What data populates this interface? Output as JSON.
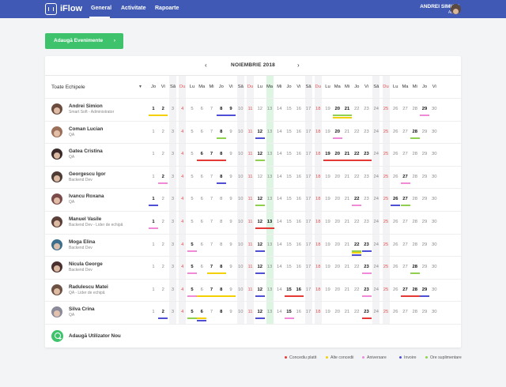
{
  "app": {
    "brand": "iFlow"
  },
  "nav": {
    "items": [
      "General",
      "Activitate",
      "Rapoarte"
    ],
    "active": 0
  },
  "user": {
    "name": "ANDREI SIMION",
    "role": "Admin"
  },
  "actions": {
    "add_events": "Adaugă Evenimente",
    "add_user": "Adaugă Utilizator Nou"
  },
  "calendar": {
    "month": "NOIEMBRIE 2018",
    "team_select": "Toate Echipele",
    "weekdays": [
      "Jo",
      "Vi",
      "Sâ",
      "Du",
      "Lu",
      "Ma",
      "Mi",
      "Jo",
      "Vi",
      "Sâ",
      "Du",
      "Lu",
      "Ma",
      "Mi",
      "Jo",
      "Vi",
      "Sâ",
      "Du",
      "Lu",
      "Ma",
      "Mi",
      "Jo",
      "Vi",
      "Sâ",
      "Du",
      "Lu",
      "Ma",
      "Mi",
      "Jo",
      "Vi"
    ],
    "today": 13
  },
  "colors": {
    "paid_leave": "#e53935",
    "other_leave": "#f5d000",
    "birthday": "#f08ad8",
    "absence": "#4f4fd6",
    "overtime": "#8fd14f"
  },
  "legend": [
    {
      "label": "Concediu platit",
      "color": "#e53935"
    },
    {
      "label": "Alte concedii",
      "color": "#f5d000"
    },
    {
      "label": "Aniversare",
      "color": "#f08ad8"
    },
    {
      "label": "Invoire",
      "color": "#4f4fd6"
    },
    {
      "label": "Ore suplimentare",
      "color": "#8fd14f"
    }
  ],
  "employees": [
    {
      "name": "Andrei Simion",
      "role": "Smart Soft - Administrator",
      "avatar_color": "#6a4b3e",
      "bold": [
        1,
        2,
        8,
        9,
        20,
        21,
        29
      ],
      "events": [
        {
          "from": 1,
          "to": 2,
          "type": "other_leave"
        },
        {
          "from": 8,
          "to": 8,
          "type": "absence"
        },
        {
          "from": 9,
          "to": 9,
          "type": "absence"
        },
        {
          "from": 20,
          "to": 21,
          "type": "overtime"
        },
        {
          "from": 20,
          "to": 21,
          "type": "other_leave"
        },
        {
          "from": 29,
          "to": 29,
          "type": "birthday"
        }
      ]
    },
    {
      "name": "Coman Lucian",
      "role": "QA",
      "avatar_color": "#9c6f5a",
      "bold": [
        8,
        12,
        20,
        28
      ],
      "events": [
        {
          "from": 8,
          "to": 8,
          "type": "overtime"
        },
        {
          "from": 12,
          "to": 12,
          "type": "absence"
        },
        {
          "from": 20,
          "to": 20,
          "type": "birthday"
        },
        {
          "from": 28,
          "to": 28,
          "type": "overtime"
        }
      ]
    },
    {
      "name": "Gatea Cristina",
      "role": "QA",
      "avatar_color": "#3c2a2a",
      "bold": [
        6,
        7,
        8,
        12,
        19,
        20,
        21,
        22,
        23
      ],
      "events": [
        {
          "from": 6,
          "to": 8,
          "type": "paid_leave"
        },
        {
          "from": 12,
          "to": 12,
          "type": "overtime"
        },
        {
          "from": 19,
          "to": 23,
          "type": "paid_leave"
        }
      ]
    },
    {
      "name": "Georgescu Igor",
      "role": "Backend Dev",
      "avatar_color": "#4e3b34",
      "bold": [
        2,
        8,
        27
      ],
      "events": [
        {
          "from": 2,
          "to": 2,
          "type": "birthday"
        },
        {
          "from": 8,
          "to": 8,
          "type": "absence"
        },
        {
          "from": 27,
          "to": 27,
          "type": "birthday"
        }
      ]
    },
    {
      "name": "Ivancu Roxana",
      "role": "QA",
      "avatar_color": "#7a4a4a",
      "bold": [
        1,
        12,
        22,
        26,
        27
      ],
      "events": [
        {
          "from": 1,
          "to": 1,
          "type": "absence"
        },
        {
          "from": 12,
          "to": 12,
          "type": "overtime"
        },
        {
          "from": 22,
          "to": 22,
          "type": "birthday"
        },
        {
          "from": 26,
          "to": 26,
          "type": "absence"
        },
        {
          "from": 27,
          "to": 27,
          "type": "overtime"
        }
      ]
    },
    {
      "name": "Manuel Vasile",
      "role": "Backend Dev - Lider de echipă",
      "avatar_color": "#5a4038",
      "bold": [
        1,
        12,
        13
      ],
      "events": [
        {
          "from": 1,
          "to": 1,
          "type": "birthday"
        },
        {
          "from": 12,
          "to": 13,
          "type": "paid_leave"
        }
      ]
    },
    {
      "name": "Moga Elina",
      "role": "Backend Dev",
      "avatar_color": "#3d6e8c",
      "bold": [
        5,
        12,
        22,
        23
      ],
      "events": [
        {
          "from": 5,
          "to": 5,
          "type": "birthday"
        },
        {
          "from": 12,
          "to": 12,
          "type": "absence"
        },
        {
          "from": 22,
          "to": 22,
          "type": "overtime"
        },
        {
          "from": 22,
          "to": 22,
          "type": "other_leave"
        },
        {
          "from": 22,
          "to": 22,
          "type": "absence"
        },
        {
          "from": 23,
          "to": 23,
          "type": "absence"
        }
      ]
    },
    {
      "name": "Nicula George",
      "role": "Backend Dev",
      "avatar_color": "#4a2f2f",
      "bold": [
        5,
        7,
        8,
        12,
        23,
        28
      ],
      "events": [
        {
          "from": 5,
          "to": 5,
          "type": "birthday"
        },
        {
          "from": 7,
          "to": 8,
          "type": "other_leave"
        },
        {
          "from": 12,
          "to": 12,
          "type": "absence"
        },
        {
          "from": 23,
          "to": 23,
          "type": "birthday"
        },
        {
          "from": 28,
          "to": 28,
          "type": "overtime"
        }
      ]
    },
    {
      "name": "Radulescu Matei",
      "role": "QA - Lider de echipă",
      "avatar_color": "#6c5244",
      "bold": [
        5,
        7,
        8,
        12,
        15,
        16,
        23,
        27,
        28,
        29
      ],
      "events": [
        {
          "from": 5,
          "to": 5,
          "type": "birthday"
        },
        {
          "from": 6,
          "to": 9,
          "type": "other_leave"
        },
        {
          "from": 12,
          "to": 12,
          "type": "absence"
        },
        {
          "from": 15,
          "to": 16,
          "type": "paid_leave"
        },
        {
          "from": 23,
          "to": 23,
          "type": "birthday"
        },
        {
          "from": 27,
          "to": 28,
          "type": "paid_leave"
        },
        {
          "from": 29,
          "to": 29,
          "type": "absence"
        }
      ]
    },
    {
      "name": "Silva Crina",
      "role": "QA",
      "avatar_color": "#8a8a9a",
      "bold": [
        2,
        5,
        6,
        8,
        12,
        15,
        23
      ],
      "events": [
        {
          "from": 2,
          "to": 2,
          "type": "absence"
        },
        {
          "from": 5,
          "to": 5,
          "type": "overtime"
        },
        {
          "from": 6,
          "to": 6,
          "type": "other_leave"
        },
        {
          "from": 6,
          "to": 6,
          "type": "absence"
        },
        {
          "from": 12,
          "to": 12,
          "type": "absence"
        },
        {
          "from": 15,
          "to": 15,
          "type": "birthday"
        },
        {
          "from": 23,
          "to": 23,
          "type": "paid_leave"
        }
      ]
    }
  ]
}
